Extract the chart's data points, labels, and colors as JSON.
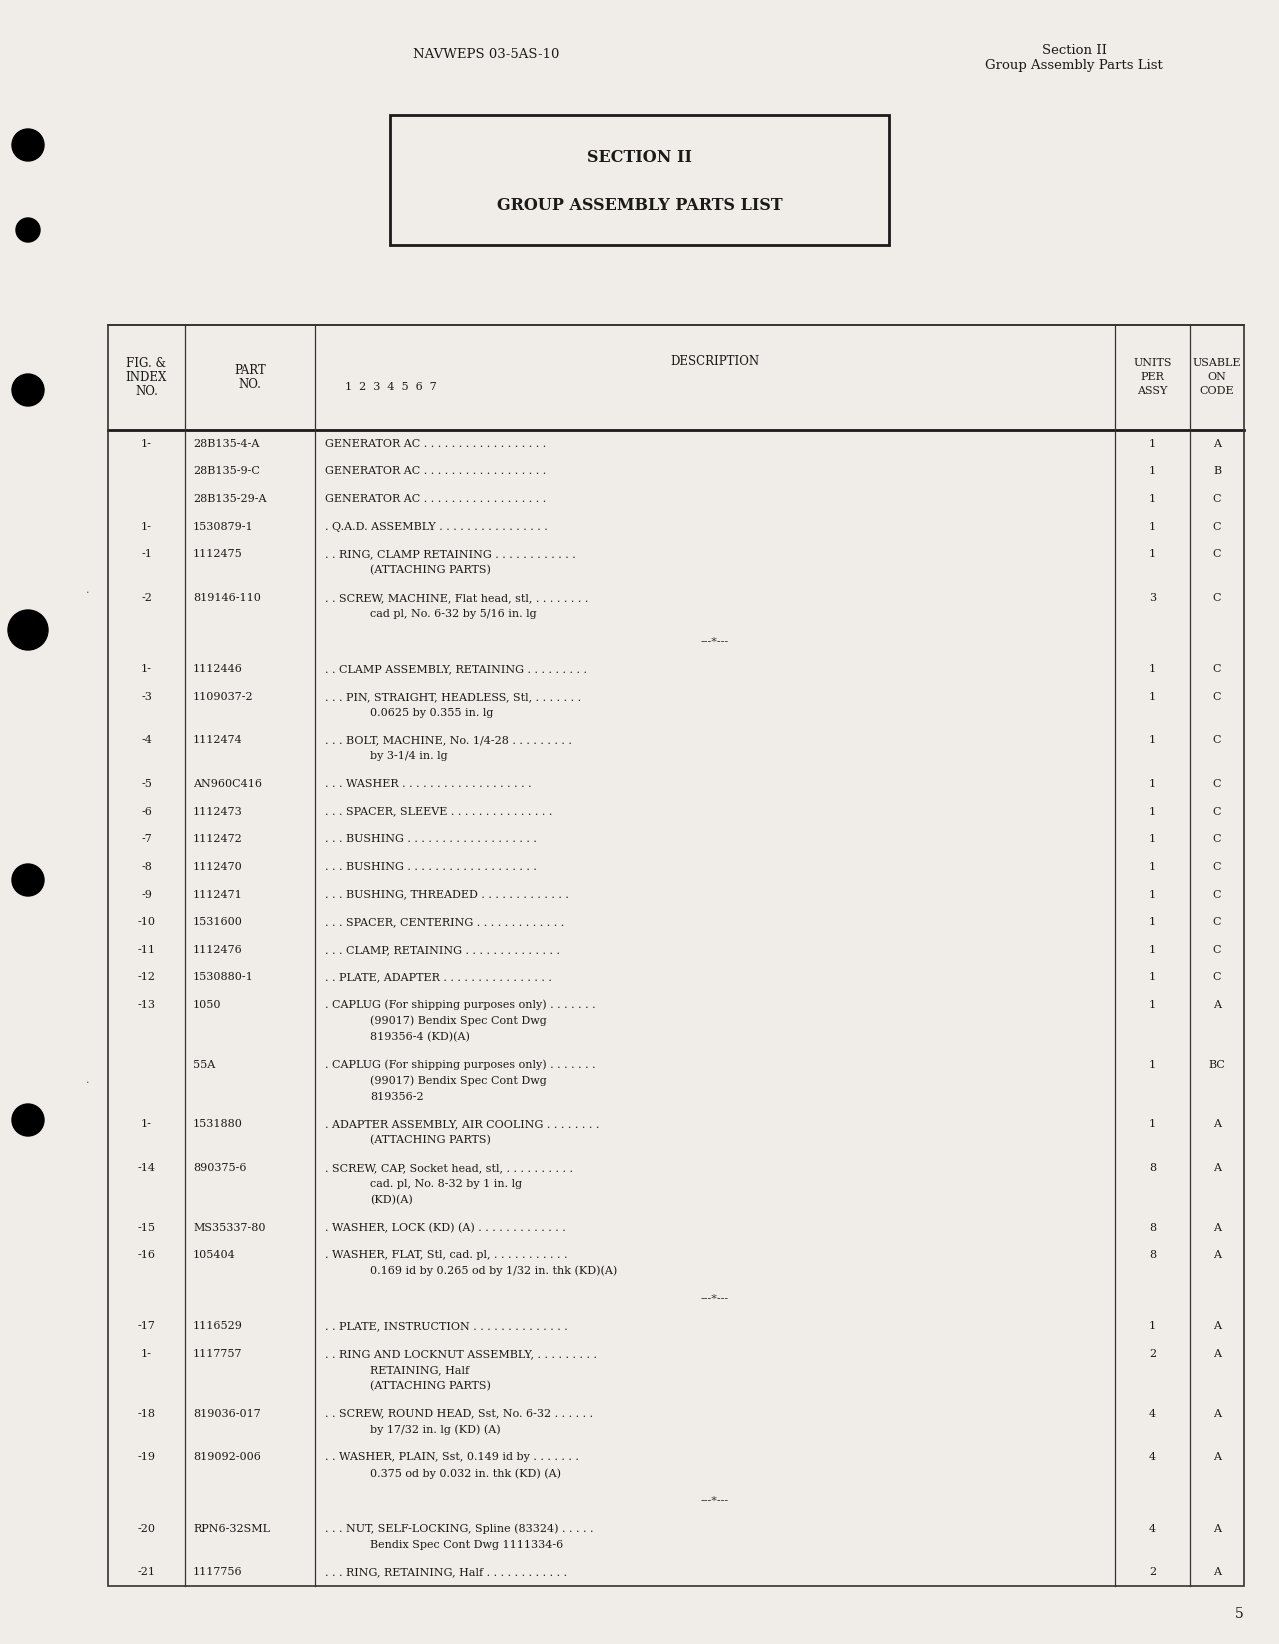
{
  "bg_color": "#f0ede8",
  "page_number": "5",
  "header_left": "NAVWEPS 03-5AS-10",
  "header_right_line1": "Section II",
  "header_right_line2": "Group Assembly Parts List",
  "section_box_line1": "SECTION II",
  "section_box_line2": "GROUP ASSEMBLY PARTS LIST",
  "rows": [
    {
      "fig": "1-",
      "part": "28B135-4-A",
      "desc1": "GENERATOR AC . . . . . . . . . . . . . . . . . .",
      "desc2": "",
      "units": "1",
      "code": "A"
    },
    {
      "fig": "",
      "part": "28B135-9-C",
      "desc1": "GENERATOR AC . . . . . . . . . . . . . . . . . .",
      "desc2": "",
      "units": "1",
      "code": "B"
    },
    {
      "fig": "",
      "part": "28B135-29-A",
      "desc1": "GENERATOR AC . . . . . . . . . . . . . . . . . .",
      "desc2": "",
      "units": "1",
      "code": "C"
    },
    {
      "fig": "1-",
      "part": "1530879-1",
      "desc1": ". Q.A.D. ASSEMBLY . . . . . . . . . . . . . . . .",
      "desc2": "",
      "units": "1",
      "code": "C"
    },
    {
      "fig": "-1",
      "part": "1112475",
      "desc1": ". . RING, CLAMP RETAINING . . . . . . . . . . . .",
      "desc2": "(ATTACHING PARTS)",
      "units": "1",
      "code": "C"
    },
    {
      "fig": "-2",
      "part": "819146-110",
      "desc1": ". . SCREW, MACHINE, Flat head, stl, . . . . . . . .",
      "desc2": "cad pl, No. 6-32 by 5/16 in. lg",
      "units": "3",
      "code": "C"
    },
    {
      "fig": "",
      "part": "",
      "desc1": "---*---",
      "desc2": "",
      "units": "",
      "code": ""
    },
    {
      "fig": "1-",
      "part": "1112446",
      "desc1": ". . CLAMP ASSEMBLY, RETAINING . . . . . . . . .",
      "desc2": "",
      "units": "1",
      "code": "C"
    },
    {
      "fig": "-3",
      "part": "1109037-2",
      "desc1": ". . . PIN, STRAIGHT, HEADLESS, Stl, . . . . . . .",
      "desc2": "0.0625 by 0.355 in. lg",
      "units": "1",
      "code": "C"
    },
    {
      "fig": "-4",
      "part": "1112474",
      "desc1": ". . . BOLT, MACHINE, No. 1/4-28 . . . . . . . . .",
      "desc2": "by 3-1/4 in. lg",
      "units": "1",
      "code": "C"
    },
    {
      "fig": "-5",
      "part": "AN960C416",
      "desc1": ". . . WASHER . . . . . . . . . . . . . . . . . . .",
      "desc2": "",
      "units": "1",
      "code": "C"
    },
    {
      "fig": "-6",
      "part": "1112473",
      "desc1": ". . . SPACER, SLEEVE . . . . . . . . . . . . . . .",
      "desc2": "",
      "units": "1",
      "code": "C"
    },
    {
      "fig": "-7",
      "part": "1112472",
      "desc1": ". . . BUSHING . . . . . . . . . . . . . . . . . . .",
      "desc2": "",
      "units": "1",
      "code": "C"
    },
    {
      "fig": "-8",
      "part": "1112470",
      "desc1": ". . . BUSHING . . . . . . . . . . . . . . . . . . .",
      "desc2": "",
      "units": "1",
      "code": "C"
    },
    {
      "fig": "-9",
      "part": "1112471",
      "desc1": ". . . BUSHING, THREADED . . . . . . . . . . . . .",
      "desc2": "",
      "units": "1",
      "code": "C"
    },
    {
      "fig": "-10",
      "part": "1531600",
      "desc1": ". . . SPACER, CENTERING . . . . . . . . . . . . .",
      "desc2": "",
      "units": "1",
      "code": "C"
    },
    {
      "fig": "-11",
      "part": "1112476",
      "desc1": ". . . CLAMP, RETAINING . . . . . . . . . . . . . .",
      "desc2": "",
      "units": "1",
      "code": "C"
    },
    {
      "fig": "-12",
      "part": "1530880-1",
      "desc1": ". . PLATE, ADAPTER . . . . . . . . . . . . . . . .",
      "desc2": "",
      "units": "1",
      "code": "C"
    },
    {
      "fig": "-13",
      "part": "1050",
      "desc1": ". CAPLUG (For shipping purposes only) . . . . . . .",
      "desc2": "(99017) Bendix Spec Cont Dwg\n819356-4 (KD)(A)",
      "units": "1",
      "code": "A"
    },
    {
      "fig": "",
      "part": "55A",
      "desc1": ". CAPLUG (For shipping purposes only) . . . . . . .",
      "desc2": "(99017) Bendix Spec Cont Dwg\n819356-2",
      "units": "1",
      "code": "BC"
    },
    {
      "fig": "1-",
      "part": "1531880",
      "desc1": ". ADAPTER ASSEMBLY, AIR COOLING . . . . . . . .",
      "desc2": "(ATTACHING PARTS)",
      "units": "1",
      "code": "A"
    },
    {
      "fig": "-14",
      "part": "890375-6",
      "desc1": ". SCREW, CAP, Socket head, stl, . . . . . . . . . .",
      "desc2": "cad. pl, No. 8-32 by 1 in. lg\n(KD)(A)",
      "units": "8",
      "code": "A"
    },
    {
      "fig": "-15",
      "part": "MS35337-80",
      "desc1": ". WASHER, LOCK (KD) (A) . . . . . . . . . . . . .",
      "desc2": "",
      "units": "8",
      "code": "A"
    },
    {
      "fig": "-16",
      "part": "105404",
      "desc1": ". WASHER, FLAT, Stl, cad. pl, . . . . . . . . . . .",
      "desc2": "0.169 id by 0.265 od by 1/32 in. thk (KD)(A)",
      "units": "8",
      "code": "A"
    },
    {
      "fig": "",
      "part": "",
      "desc1": "---*---",
      "desc2": "",
      "units": "",
      "code": ""
    },
    {
      "fig": "-17",
      "part": "1116529",
      "desc1": ". . PLATE, INSTRUCTION . . . . . . . . . . . . . .",
      "desc2": "",
      "units": "1",
      "code": "A"
    },
    {
      "fig": "1-",
      "part": "1117757",
      "desc1": ". . RING AND LOCKNUT ASSEMBLY, . . . . . . . . .",
      "desc2": "RETAINING, Half\n(ATTACHING PARTS)",
      "units": "2",
      "code": "A"
    },
    {
      "fig": "-18",
      "part": "819036-017",
      "desc1": ". . SCREW, ROUND HEAD, Sst, No. 6-32 . . . . . .",
      "desc2": "by 17/32 in. lg (KD) (A)",
      "units": "4",
      "code": "A"
    },
    {
      "fig": "-19",
      "part": "819092-006",
      "desc1": ". . WASHER, PLAIN, Sst, 0.149 id by . . . . . . .",
      "desc2": "0.375 od by 0.032 in. thk (KD) (A)",
      "units": "4",
      "code": "A"
    },
    {
      "fig": "",
      "part": "",
      "desc1": "---*---",
      "desc2": "",
      "units": "",
      "code": ""
    },
    {
      "fig": "-20",
      "part": "RPN6-32SML",
      "desc1": ". . . NUT, SELF-LOCKING, Spline (83324) . . . . .",
      "desc2": "Bendix Spec Cont Dwg 1111334-6",
      "units": "4",
      "code": "A"
    },
    {
      "fig": "-21",
      "part": "1117756",
      "desc1": ". . . RING, RETAINING, Half . . . . . . . . . . . .",
      "desc2": "",
      "units": "2",
      "code": "A"
    }
  ]
}
